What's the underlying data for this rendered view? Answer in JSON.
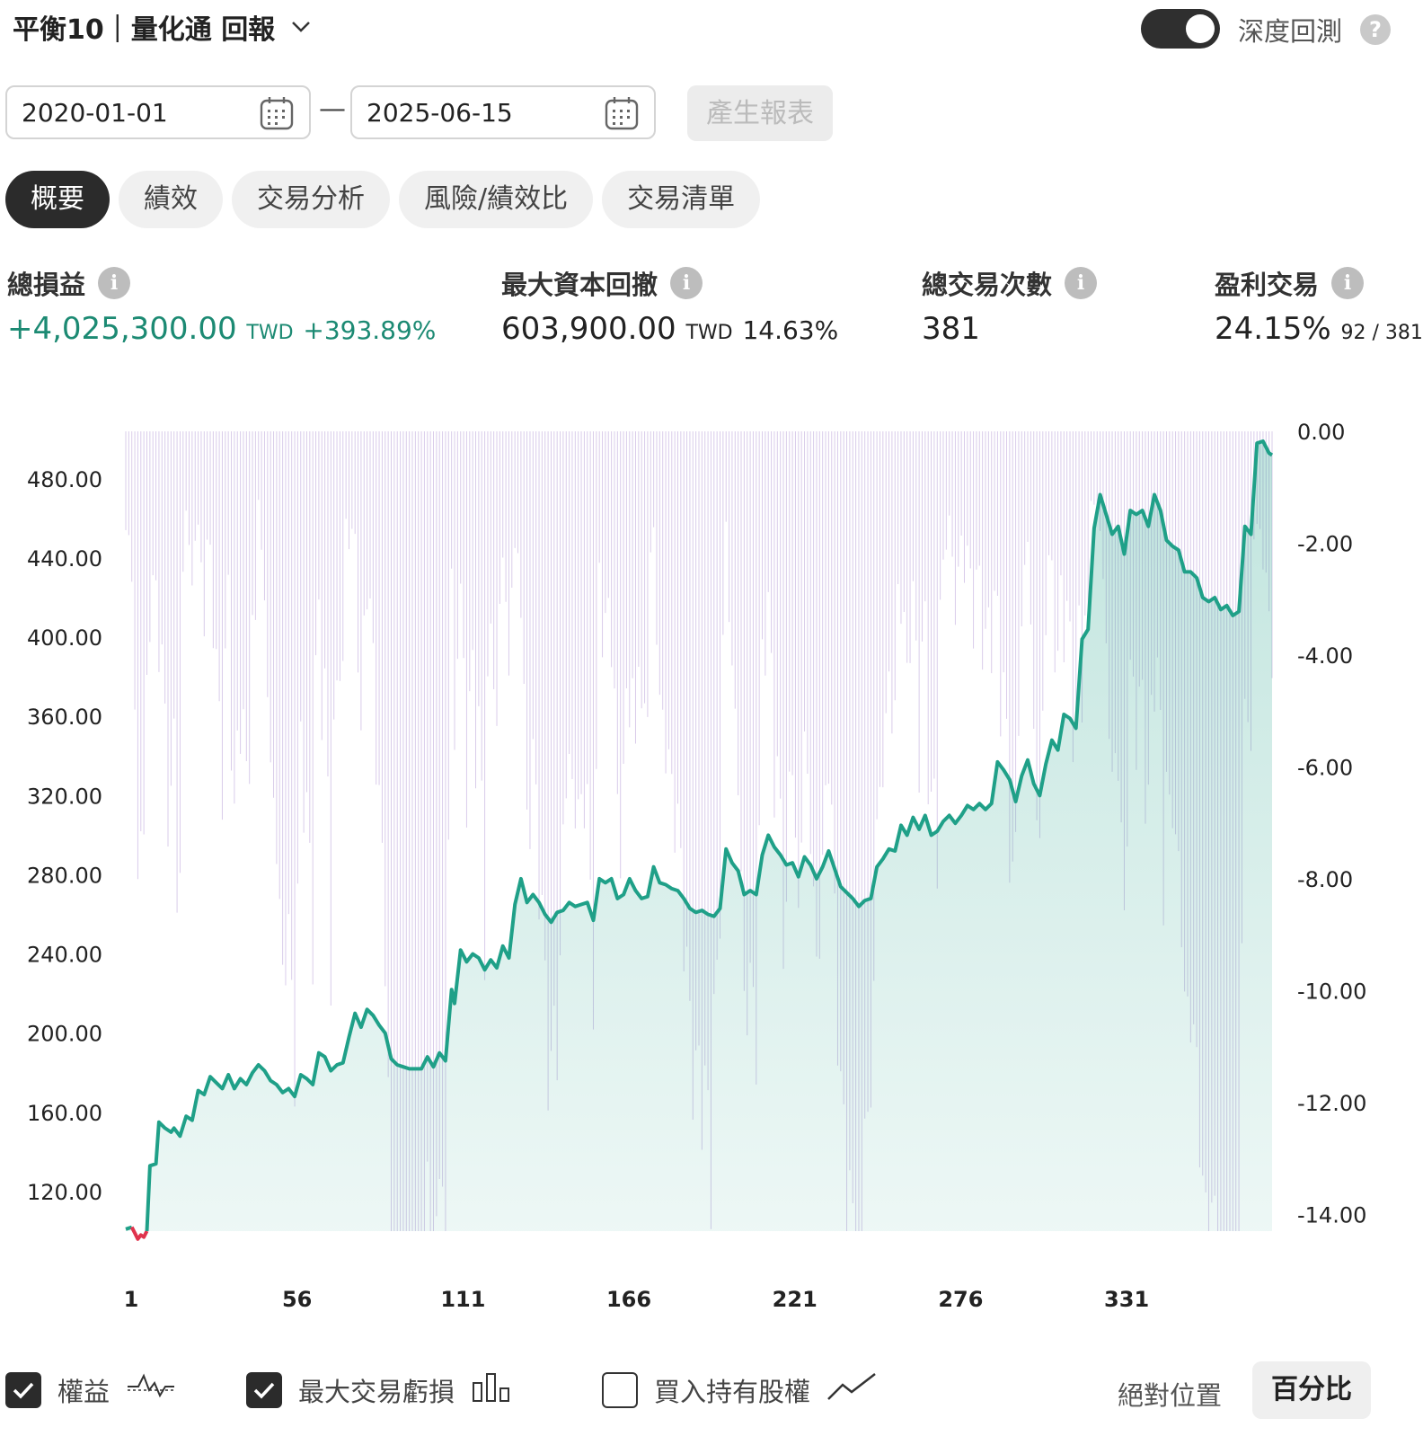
{
  "header": {
    "title": "平衡10｜量化通 回報",
    "deep_backtest_label": "深度回測",
    "deep_backtest_on": true
  },
  "dates": {
    "start": "2020-01-01",
    "dash": "—",
    "end": "2025-06-15",
    "generate_label": "產生報表"
  },
  "tabs": [
    {
      "label": "概要",
      "active": true
    },
    {
      "label": "績效",
      "active": false
    },
    {
      "label": "交易分析",
      "active": false
    },
    {
      "label": "風險/績效比",
      "active": false
    },
    {
      "label": "交易清單",
      "active": false
    }
  ],
  "stats": {
    "total_pnl": {
      "label": "總損益",
      "value": "+4,025,300.00",
      "unit": "TWD",
      "pct": "+393.89%"
    },
    "max_drawdown": {
      "label": "最大資本回撤",
      "value": "603,900.00",
      "unit": "TWD",
      "pct": "14.63%"
    },
    "total_trades": {
      "label": "總交易次數",
      "value": "381"
    },
    "win_trades": {
      "label": "盈利交易",
      "pct": "24.15%",
      "ratio": "92 / 381"
    }
  },
  "chart_data": {
    "type": "line",
    "x_ticks": [
      "1",
      "56",
      "111",
      "166",
      "221",
      "276",
      "331"
    ],
    "x_range": [
      1,
      381
    ],
    "y_left_ticks": [
      "480.00",
      "440.00",
      "400.00",
      "360.00",
      "320.00",
      "280.00",
      "240.00",
      "200.00",
      "160.00",
      "120.00"
    ],
    "y_left_range": [
      100,
      504
    ],
    "y_right_ticks": [
      "0.00",
      "-2.00",
      "-4.00",
      "-6.00",
      "-8.00",
      "-10.00",
      "-12.00",
      "-14.00"
    ],
    "y_right_range": [
      -14.3,
      0
    ],
    "equity_color": "#1fa088",
    "loss_color": "#e0334d",
    "drawdown_color": "#b9a3d8",
    "series": [
      {
        "name": "權益",
        "points": [
          [
            1,
            101
          ],
          [
            3,
            102
          ],
          [
            4,
            99
          ],
          [
            5,
            96
          ],
          [
            6,
            98
          ],
          [
            7,
            97
          ],
          [
            8,
            100
          ],
          [
            9,
            133
          ],
          [
            11,
            134
          ],
          [
            12,
            155
          ],
          [
            14,
            152
          ],
          [
            16,
            150
          ],
          [
            17,
            152
          ],
          [
            19,
            148
          ],
          [
            21,
            158
          ],
          [
            23,
            156
          ],
          [
            25,
            171
          ],
          [
            27,
            169
          ],
          [
            29,
            178
          ],
          [
            31,
            175
          ],
          [
            33,
            172
          ],
          [
            35,
            179
          ],
          [
            37,
            172
          ],
          [
            39,
            177
          ],
          [
            41,
            174
          ],
          [
            43,
            180
          ],
          [
            45,
            184
          ],
          [
            47,
            181
          ],
          [
            49,
            176
          ],
          [
            51,
            174
          ],
          [
            53,
            170
          ],
          [
            55,
            172
          ],
          [
            57,
            168
          ],
          [
            59,
            179
          ],
          [
            61,
            177
          ],
          [
            63,
            174
          ],
          [
            65,
            190
          ],
          [
            67,
            188
          ],
          [
            69,
            181
          ],
          [
            71,
            184
          ],
          [
            73,
            185
          ],
          [
            75,
            198
          ],
          [
            77,
            210
          ],
          [
            79,
            203
          ],
          [
            81,
            212
          ],
          [
            83,
            209
          ],
          [
            85,
            204
          ],
          [
            87,
            200
          ],
          [
            89,
            187
          ],
          [
            91,
            184
          ],
          [
            93,
            183
          ],
          [
            95,
            182
          ],
          [
            97,
            182
          ],
          [
            99,
            182
          ],
          [
            101,
            188
          ],
          [
            103,
            183
          ],
          [
            105,
            190
          ],
          [
            107,
            186
          ],
          [
            109,
            222
          ],
          [
            110,
            215
          ],
          [
            112,
            242
          ],
          [
            114,
            236
          ],
          [
            116,
            240
          ],
          [
            118,
            238
          ],
          [
            120,
            232
          ],
          [
            122,
            237
          ],
          [
            124,
            233
          ],
          [
            126,
            244
          ],
          [
            128,
            238
          ],
          [
            130,
            265
          ],
          [
            132,
            278
          ],
          [
            134,
            266
          ],
          [
            136,
            270
          ],
          [
            138,
            266
          ],
          [
            140,
            260
          ],
          [
            142,
            256
          ],
          [
            144,
            261
          ],
          [
            146,
            262
          ],
          [
            148,
            266
          ],
          [
            150,
            264
          ],
          [
            152,
            265
          ],
          [
            154,
            266
          ],
          [
            156,
            257
          ],
          [
            158,
            278
          ],
          [
            160,
            276
          ],
          [
            162,
            278
          ],
          [
            164,
            268
          ],
          [
            166,
            270
          ],
          [
            168,
            278
          ],
          [
            170,
            272
          ],
          [
            172,
            268
          ],
          [
            174,
            269
          ],
          [
            176,
            284
          ],
          [
            178,
            276
          ],
          [
            180,
            275
          ],
          [
            182,
            273
          ],
          [
            184,
            272
          ],
          [
            186,
            268
          ],
          [
            188,
            263
          ],
          [
            190,
            261
          ],
          [
            192,
            262
          ],
          [
            194,
            260
          ],
          [
            196,
            259
          ],
          [
            198,
            263
          ],
          [
            200,
            293
          ],
          [
            202,
            286
          ],
          [
            204,
            282
          ],
          [
            206,
            270
          ],
          [
            208,
            272
          ],
          [
            210,
            270
          ],
          [
            212,
            290
          ],
          [
            214,
            300
          ],
          [
            216,
            294
          ],
          [
            218,
            290
          ],
          [
            220,
            285
          ],
          [
            222,
            286
          ],
          [
            224,
            279
          ],
          [
            226,
            289
          ],
          [
            228,
            285
          ],
          [
            230,
            278
          ],
          [
            232,
            284
          ],
          [
            234,
            292
          ],
          [
            236,
            283
          ],
          [
            238,
            274
          ],
          [
            240,
            271
          ],
          [
            242,
            268
          ],
          [
            244,
            264
          ],
          [
            246,
            267
          ],
          [
            248,
            268
          ],
          [
            250,
            284
          ],
          [
            252,
            288
          ],
          [
            254,
            293
          ],
          [
            256,
            292
          ],
          [
            258,
            305
          ],
          [
            260,
            300
          ],
          [
            262,
            309
          ],
          [
            264,
            303
          ],
          [
            266,
            310
          ],
          [
            268,
            300
          ],
          [
            270,
            302
          ],
          [
            272,
            307
          ],
          [
            274,
            310
          ],
          [
            276,
            306
          ],
          [
            278,
            310
          ],
          [
            280,
            315
          ],
          [
            282,
            313
          ],
          [
            284,
            316
          ],
          [
            286,
            313
          ],
          [
            288,
            316
          ],
          [
            290,
            337
          ],
          [
            292,
            333
          ],
          [
            294,
            328
          ],
          [
            296,
            317
          ],
          [
            298,
            330
          ],
          [
            300,
            338
          ],
          [
            302,
            326
          ],
          [
            304,
            320
          ],
          [
            306,
            336
          ],
          [
            308,
            348
          ],
          [
            310,
            343
          ],
          [
            312,
            361
          ],
          [
            314,
            359
          ],
          [
            316,
            354
          ],
          [
            318,
            399
          ],
          [
            320,
            404
          ],
          [
            322,
            455
          ],
          [
            324,
            472
          ],
          [
            326,
            462
          ],
          [
            328,
            452
          ],
          [
            330,
            456
          ],
          [
            332,
            442
          ],
          [
            334,
            464
          ],
          [
            336,
            462
          ],
          [
            338,
            464
          ],
          [
            340,
            456
          ],
          [
            342,
            472
          ],
          [
            344,
            464
          ],
          [
            346,
            449
          ],
          [
            348,
            446
          ],
          [
            350,
            444
          ],
          [
            352,
            433
          ],
          [
            354,
            433
          ],
          [
            356,
            430
          ],
          [
            358,
            420
          ],
          [
            360,
            418
          ],
          [
            362,
            420
          ],
          [
            364,
            414
          ],
          [
            366,
            416
          ],
          [
            368,
            411
          ],
          [
            370,
            413
          ],
          [
            372,
            456
          ],
          [
            374,
            452
          ],
          [
            376,
            498
          ],
          [
            378,
            499
          ],
          [
            380,
            493
          ],
          [
            381,
            492
          ]
        ]
      },
      {
        "name": "最大交易虧損"
      },
      {
        "name": "買入持有股權"
      }
    ]
  },
  "legend": {
    "items": [
      {
        "label": "權益",
        "checked": true
      },
      {
        "label": "最大交易虧損",
        "checked": true
      },
      {
        "label": "買入持有股權",
        "checked": false
      }
    ],
    "mode_absolute": "絕對位置",
    "mode_percent": "百分比"
  }
}
